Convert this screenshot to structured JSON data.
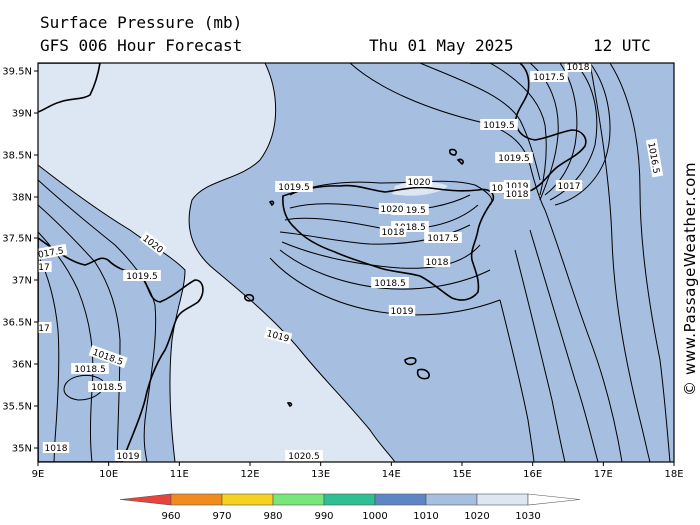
{
  "header": {
    "title": "Surface Pressure (mb)",
    "subtitle": "GFS 006 Hour Forecast",
    "date": "Thu 01 May 2025",
    "time": "12 UTC"
  },
  "credit": "© www.PassageWeather.com",
  "axes": {
    "lat_labels": [
      "39.5N",
      "39N",
      "38.5N",
      "38N",
      "37.5N",
      "37N",
      "36.5N",
      "36N",
      "35.5N",
      "35N"
    ],
    "lon_labels": [
      "9E",
      "10E",
      "11E",
      "12E",
      "13E",
      "14E",
      "15E",
      "16E",
      "17E",
      "18E"
    ]
  },
  "colors": {
    "fill_1020_1030": "#dde6f3",
    "fill_1010_1020": "#a6bee0",
    "contour": "#000000",
    "coast": "#000000"
  },
  "contour_labels": [
    {
      "text": "1017.5"
    },
    {
      "text": "1018"
    },
    {
      "text": "1019.5"
    },
    {
      "text": "1020"
    },
    {
      "text": "1019"
    },
    {
      "text": "1019.5"
    },
    {
      "text": "1019"
    },
    {
      "text": "1018"
    },
    {
      "text": "1017"
    },
    {
      "text": "1018.5"
    },
    {
      "text": "1019.5"
    },
    {
      "text": "1020"
    },
    {
      "text": "1019.5"
    },
    {
      "text": "1019"
    },
    {
      "text": "1018.5"
    },
    {
      "text": "1018"
    },
    {
      "text": "1017.5"
    },
    {
      "text": "1018"
    },
    {
      "text": "1018.5"
    },
    {
      "text": "1019"
    },
    {
      "text": "1020"
    },
    {
      "text": "1019.5"
    },
    {
      "text": "1017.5"
    },
    {
      "text": "17"
    },
    {
      "text": "1018.5"
    },
    {
      "text": "1018.5"
    },
    {
      "text": "1018"
    },
    {
      "text": "1019"
    },
    {
      "text": "1020"
    },
    {
      "text": "1020.5"
    },
    {
      "text": "1016.5"
    },
    {
      "text": "17"
    }
  ],
  "legend": {
    "labels": [
      "960",
      "970",
      "980",
      "990",
      "1000",
      "1010",
      "1020",
      "1030"
    ],
    "colors": [
      "#e8443c",
      "#f08c1e",
      "#f5d21e",
      "#78e67a",
      "#2fbf94",
      "#5c86c6",
      "#a6bee0",
      "#dde6f3",
      "#ffffff"
    ]
  }
}
